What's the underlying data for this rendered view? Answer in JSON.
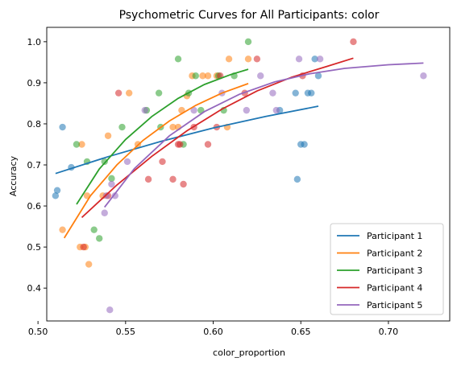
{
  "chart_data": {
    "type": "scatter",
    "title": "Psychometric Curves for All Participants: color",
    "xlabel": "color_proportion",
    "ylabel": "Accuracy",
    "xlim": [
      0.505,
      0.735
    ],
    "ylim": [
      0.32,
      1.035
    ],
    "xticks": [
      "0.50",
      "0.55",
      "0.60",
      "0.65",
      "0.70"
    ],
    "xtick_values": [
      0.5,
      0.55,
      0.6,
      0.65,
      0.7
    ],
    "yticks": [
      "0.4",
      "0.5",
      "0.6",
      "0.7",
      "0.8",
      "0.9",
      "1.0"
    ],
    "ytick_values": [
      0.4,
      0.5,
      0.6,
      0.7,
      0.8,
      0.9,
      1.0
    ],
    "grid": false,
    "legend_position": "lower-right",
    "series": [
      {
        "name": "Participant 1",
        "color": "#1f77b4",
        "points": [
          [
            0.51,
            0.625
          ],
          [
            0.511,
            0.638
          ],
          [
            0.514,
            0.792
          ],
          [
            0.519,
            0.694
          ],
          [
            0.647,
            0.875
          ],
          [
            0.648,
            0.665
          ],
          [
            0.65,
            0.75
          ],
          [
            0.652,
            0.75
          ],
          [
            0.654,
            0.875
          ],
          [
            0.656,
            0.875
          ],
          [
            0.658,
            0.958
          ],
          [
            0.66,
            0.917
          ],
          [
            0.638,
            0.833
          ]
        ],
        "curve": [
          [
            0.51,
            0.679
          ],
          [
            0.54,
            0.72
          ],
          [
            0.57,
            0.757
          ],
          [
            0.6,
            0.79
          ],
          [
            0.63,
            0.818
          ],
          [
            0.66,
            0.843
          ]
        ]
      },
      {
        "name": "Participant 2",
        "color": "#ff7f0e",
        "points": [
          [
            0.514,
            0.542
          ],
          [
            0.524,
            0.5
          ],
          [
            0.525,
            0.75
          ],
          [
            0.527,
            0.5
          ],
          [
            0.528,
            0.625
          ],
          [
            0.529,
            0.458
          ],
          [
            0.537,
            0.625
          ],
          [
            0.54,
            0.771
          ],
          [
            0.552,
            0.875
          ],
          [
            0.557,
            0.75
          ],
          [
            0.577,
            0.792
          ],
          [
            0.58,
            0.792
          ],
          [
            0.582,
            0.833
          ],
          [
            0.585,
            0.868
          ],
          [
            0.588,
            0.917
          ],
          [
            0.594,
            0.917
          ],
          [
            0.597,
            0.917
          ],
          [
            0.602,
            0.917
          ],
          [
            0.608,
            0.792
          ],
          [
            0.609,
            0.958
          ],
          [
            0.62,
            0.958
          ]
        ],
        "curve": [
          [
            0.515,
            0.522
          ],
          [
            0.53,
            0.625
          ],
          [
            0.545,
            0.7
          ],
          [
            0.56,
            0.76
          ],
          [
            0.575,
            0.807
          ],
          [
            0.59,
            0.845
          ],
          [
            0.605,
            0.875
          ],
          [
            0.62,
            0.898
          ]
        ]
      },
      {
        "name": "Participant 3",
        "color": "#2ca02c",
        "points": [
          [
            0.522,
            0.75
          ],
          [
            0.528,
            0.708
          ],
          [
            0.532,
            0.542
          ],
          [
            0.535,
            0.521
          ],
          [
            0.538,
            0.708
          ],
          [
            0.542,
            0.667
          ],
          [
            0.548,
            0.792
          ],
          [
            0.562,
            0.833
          ],
          [
            0.569,
            0.875
          ],
          [
            0.57,
            0.792
          ],
          [
            0.58,
            0.958
          ],
          [
            0.583,
            0.75
          ],
          [
            0.586,
            0.875
          ],
          [
            0.59,
            0.917
          ],
          [
            0.593,
            0.833
          ],
          [
            0.603,
            0.917
          ],
          [
            0.606,
            0.833
          ],
          [
            0.612,
            0.917
          ],
          [
            0.62,
            1.0
          ]
        ],
        "curve": [
          [
            0.522,
            0.604
          ],
          [
            0.535,
            0.69
          ],
          [
            0.55,
            0.762
          ],
          [
            0.565,
            0.818
          ],
          [
            0.58,
            0.862
          ],
          [
            0.595,
            0.896
          ],
          [
            0.61,
            0.92
          ],
          [
            0.62,
            0.933
          ]
        ]
      },
      {
        "name": "Participant 4",
        "color": "#d62728",
        "points": [
          [
            0.526,
            0.5
          ],
          [
            0.54,
            0.625
          ],
          [
            0.546,
            0.875
          ],
          [
            0.563,
            0.665
          ],
          [
            0.571,
            0.708
          ],
          [
            0.577,
            0.665
          ],
          [
            0.58,
            0.75
          ],
          [
            0.581,
            0.75
          ],
          [
            0.583,
            0.653
          ],
          [
            0.589,
            0.792
          ],
          [
            0.597,
            0.75
          ],
          [
            0.602,
            0.792
          ],
          [
            0.604,
            0.917
          ],
          [
            0.618,
            0.875
          ],
          [
            0.625,
            0.958
          ],
          [
            0.651,
            0.917
          ],
          [
            0.68,
            1.0
          ]
        ],
        "curve": [
          [
            0.525,
            0.572
          ],
          [
            0.545,
            0.651
          ],
          [
            0.565,
            0.721
          ],
          [
            0.585,
            0.783
          ],
          [
            0.605,
            0.836
          ],
          [
            0.625,
            0.88
          ],
          [
            0.645,
            0.914
          ],
          [
            0.665,
            0.94
          ],
          [
            0.68,
            0.96
          ]
        ]
      },
      {
        "name": "Participant 5",
        "color": "#9467bd",
        "points": [
          [
            0.538,
            0.583
          ],
          [
            0.539,
            0.625
          ],
          [
            0.541,
            0.347
          ],
          [
            0.542,
            0.653
          ],
          [
            0.544,
            0.625
          ],
          [
            0.551,
            0.708
          ],
          [
            0.561,
            0.833
          ],
          [
            0.589,
            0.833
          ],
          [
            0.605,
            0.875
          ],
          [
            0.619,
            0.833
          ],
          [
            0.627,
            0.917
          ],
          [
            0.634,
            0.875
          ],
          [
            0.636,
            0.833
          ],
          [
            0.649,
            0.958
          ],
          [
            0.661,
            0.958
          ],
          [
            0.72,
            0.917
          ]
        ],
        "curve": [
          [
            0.538,
            0.597
          ],
          [
            0.555,
            0.691
          ],
          [
            0.575,
            0.771
          ],
          [
            0.595,
            0.83
          ],
          [
            0.615,
            0.872
          ],
          [
            0.635,
            0.902
          ],
          [
            0.655,
            0.922
          ],
          [
            0.675,
            0.935
          ],
          [
            0.7,
            0.944
          ],
          [
            0.72,
            0.948
          ]
        ]
      }
    ]
  }
}
